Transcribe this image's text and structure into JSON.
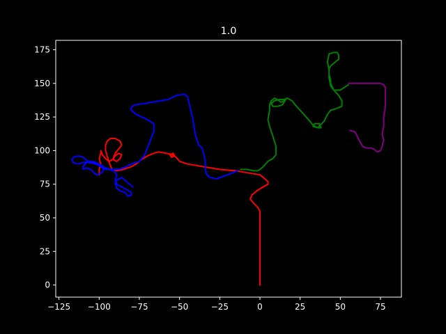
{
  "chart_data": {
    "type": "line",
    "title": "1.0",
    "xlabel": "",
    "ylabel": "",
    "xlim": [
      -127,
      88
    ],
    "ylim": [
      -9,
      182
    ],
    "x_ticks": [
      -125,
      -100,
      -75,
      -50,
      -25,
      0,
      25,
      50,
      75
    ],
    "y_ticks": [
      0,
      25,
      50,
      75,
      100,
      125,
      150,
      175
    ],
    "grid": false,
    "background": "#000000",
    "series": [
      {
        "color": "#ff0000",
        "points": [
          [
            0,
            0
          ],
          [
            0,
            20
          ],
          [
            0,
            40
          ],
          [
            0,
            55
          ],
          [
            -1.5,
            58
          ],
          [
            -4,
            61
          ],
          [
            -6,
            64
          ],
          [
            -5,
            67
          ],
          [
            -2,
            70
          ],
          [
            2,
            73
          ],
          [
            5,
            75
          ],
          [
            5,
            77
          ],
          [
            3,
            79
          ],
          [
            0,
            82
          ],
          [
            -5,
            83
          ],
          [
            -10,
            84
          ],
          [
            -15,
            85
          ],
          [
            -25,
            86
          ],
          [
            -35,
            88
          ],
          [
            -45,
            90
          ],
          [
            -50,
            92
          ],
          [
            -52,
            95
          ],
          [
            -55,
            97
          ],
          [
            -58,
            98
          ],
          [
            -63,
            99
          ],
          [
            -66,
            98
          ],
          [
            -70,
            96
          ],
          [
            -74,
            93
          ],
          [
            -77,
            90
          ],
          [
            -80,
            88
          ],
          [
            -85,
            86
          ],
          [
            -89,
            85
          ],
          [
            -92,
            86
          ],
          [
            -93,
            89
          ],
          [
            -94,
            92
          ],
          [
            -95,
            96
          ],
          [
            -96,
            100
          ],
          [
            -96,
            104
          ],
          [
            -95,
            107
          ],
          [
            -93,
            109
          ],
          [
            -90,
            109
          ],
          [
            -87,
            107
          ],
          [
            -86,
            104
          ],
          [
            -88,
            101
          ],
          [
            -90,
            98
          ],
          [
            -91,
            95
          ],
          [
            -91,
            93
          ],
          [
            -89,
            92
          ],
          [
            -87,
            94
          ],
          [
            -86,
            97
          ],
          [
            -88,
            98
          ],
          [
            -90,
            96
          ],
          [
            -92,
            93
          ],
          [
            -94,
            92
          ],
          [
            -96,
            94
          ],
          [
            -98,
            97
          ],
          [
            -99,
            100
          ],
          [
            -99,
            98
          ],
          [
            -100,
            94
          ],
          [
            -99,
            90
          ],
          [
            -100,
            86
          ],
          [
            -100,
            82
          ]
        ],
        "loop": [
          [
            -55,
            95
          ],
          [
            -53,
            96
          ],
          [
            -54,
            98
          ],
          [
            -56,
            97
          ],
          [
            -55,
            95
          ]
        ]
      },
      {
        "color": "#0000ff",
        "points": [
          [
            -14,
            85
          ],
          [
            -20,
            82
          ],
          [
            -27,
            79
          ],
          [
            -31,
            80
          ],
          [
            -33,
            82
          ],
          [
            -34,
            86
          ],
          [
            -34,
            92
          ],
          [
            -35,
            98
          ],
          [
            -36,
            102
          ],
          [
            -38,
            104
          ],
          [
            -40,
            111
          ],
          [
            -42,
            125
          ],
          [
            -44,
            135
          ],
          [
            -45,
            140
          ],
          [
            -47,
            142
          ],
          [
            -52,
            141
          ],
          [
            -57,
            138
          ],
          [
            -62,
            137
          ],
          [
            -67,
            136
          ],
          [
            -72,
            135
          ],
          [
            -78,
            134
          ],
          [
            -80,
            132
          ],
          [
            -80,
            130
          ],
          [
            -77,
            127
          ],
          [
            -70,
            123
          ],
          [
            -66,
            120
          ],
          [
            -66,
            114
          ],
          [
            -68,
            108
          ],
          [
            -70,
            102
          ],
          [
            -72,
            96
          ],
          [
            -75,
            92
          ],
          [
            -80,
            90
          ],
          [
            -85,
            87
          ],
          [
            -88,
            86
          ],
          [
            -92,
            86
          ],
          [
            -95,
            86
          ],
          [
            -98,
            87
          ],
          [
            -100,
            90
          ],
          [
            -103,
            91
          ],
          [
            -106,
            92
          ],
          [
            -110,
            91
          ],
          [
            -113,
            90
          ],
          [
            -116,
            91
          ],
          [
            -117,
            93
          ],
          [
            -116,
            95
          ],
          [
            -113,
            96
          ],
          [
            -110,
            95
          ],
          [
            -108,
            93
          ],
          [
            -106,
            91
          ],
          [
            -102,
            90
          ],
          [
            -99,
            88
          ],
          [
            -97,
            86
          ],
          [
            -98,
            84
          ],
          [
            -101,
            82
          ],
          [
            -103,
            83
          ],
          [
            -105,
            86
          ],
          [
            -108,
            87
          ],
          [
            -110,
            86
          ],
          [
            -110,
            88
          ],
          [
            -108,
            91
          ],
          [
            -104,
            92
          ],
          [
            -100,
            90
          ],
          [
            -96,
            87
          ],
          [
            -91,
            85
          ],
          [
            -89,
            82
          ],
          [
            -90,
            78
          ],
          [
            -89,
            75
          ],
          [
            -86,
            73
          ],
          [
            -83,
            71
          ],
          [
            -80,
            69
          ],
          [
            -80,
            67
          ],
          [
            -82,
            66
          ],
          [
            -84,
            69
          ],
          [
            -87,
            70
          ],
          [
            -89,
            72
          ],
          [
            -90,
            75
          ],
          [
            -89,
            78
          ],
          [
            -86,
            80
          ],
          [
            -83,
            77
          ],
          [
            -79,
            73
          ]
        ]
      },
      {
        "color": "#008000",
        "points": [
          [
            -12,
            86
          ],
          [
            -8,
            86
          ],
          [
            -4,
            85
          ],
          [
            -1,
            85
          ],
          [
            2,
            88
          ],
          [
            5,
            92
          ],
          [
            8,
            94
          ],
          [
            10,
            97
          ],
          [
            10,
            103
          ],
          [
            8,
            111
          ],
          [
            6,
            118
          ],
          [
            5,
            123
          ],
          [
            6,
            130
          ],
          [
            6,
            134
          ],
          [
            7,
            137
          ],
          [
            9,
            139
          ],
          [
            11,
            138
          ],
          [
            13,
            136
          ],
          [
            15,
            137
          ],
          [
            16,
            138
          ],
          [
            14,
            134
          ],
          [
            11,
            133
          ],
          [
            8,
            133
          ],
          [
            7,
            135
          ],
          [
            9,
            137
          ],
          [
            12,
            138
          ],
          [
            15,
            138
          ],
          [
            17,
            139
          ],
          [
            20,
            137
          ],
          [
            22,
            134
          ],
          [
            25,
            130
          ],
          [
            28,
            126
          ],
          [
            31,
            122
          ],
          [
            33,
            119
          ],
          [
            34,
            118
          ],
          [
            36,
            117
          ],
          [
            38,
            117
          ],
          [
            37,
            120
          ],
          [
            34,
            120
          ],
          [
            33,
            118
          ],
          [
            36,
            117
          ],
          [
            40,
            122
          ],
          [
            42,
            127
          ],
          [
            44,
            130
          ],
          [
            47,
            131
          ],
          [
            51,
            133
          ],
          [
            51,
            137
          ],
          [
            49,
            141
          ],
          [
            46,
            145
          ],
          [
            44,
            150
          ],
          [
            44,
            152
          ],
          [
            43,
            157
          ],
          [
            43,
            161
          ],
          [
            44,
            163
          ],
          [
            47,
            166
          ],
          [
            49,
            168
          ],
          [
            49,
            171
          ],
          [
            48,
            173
          ],
          [
            46,
            173
          ],
          [
            43,
            172
          ],
          [
            42,
            166
          ],
          [
            43,
            160
          ],
          [
            43,
            154
          ],
          [
            44,
            148
          ],
          [
            46,
            145
          ],
          [
            50,
            145
          ],
          [
            55,
            149
          ]
        ]
      },
      {
        "color": "#800080",
        "points": [
          [
            55,
            150
          ],
          [
            60,
            150
          ],
          [
            65,
            150
          ],
          [
            70,
            150
          ],
          [
            75,
            150
          ],
          [
            77,
            149
          ],
          [
            78,
            147
          ],
          [
            78,
            141
          ],
          [
            78,
            132
          ],
          [
            77,
            125
          ],
          [
            77,
            118
          ],
          [
            76,
            112
          ],
          [
            77,
            108
          ],
          [
            76,
            103
          ],
          [
            75,
            100
          ],
          [
            73,
            99
          ],
          [
            71,
            101
          ],
          [
            69,
            102
          ],
          [
            66,
            102
          ],
          [
            64,
            103
          ],
          [
            62,
            107
          ],
          [
            60,
            112
          ],
          [
            59,
            114
          ],
          [
            56,
            115
          ]
        ]
      }
    ]
  }
}
